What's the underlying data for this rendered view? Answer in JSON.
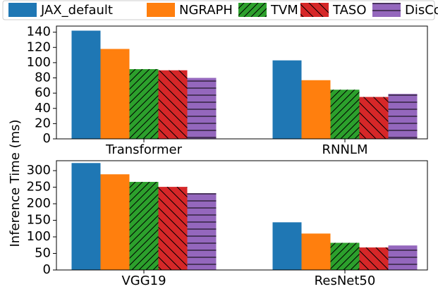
{
  "chart_data": {
    "type": "bar",
    "ylabel": "Inference Time (ms)",
    "series": [
      {
        "name": "JAX_default",
        "color": "#1f77b4",
        "hatch": null
      },
      {
        "name": "NGRAPH",
        "color": "#ff7f0e",
        "hatch": null
      },
      {
        "name": "TVM",
        "color": "#2ca02c",
        "hatch": "/"
      },
      {
        "name": "TASO",
        "color": "#d62728",
        "hatch": "\\"
      },
      {
        "name": "DisCo",
        "color": "#9467bd",
        "hatch": "-"
      }
    ],
    "panels": [
      {
        "categories": [
          "Transformer",
          "RNNLM"
        ],
        "values": [
          [
            142,
            103
          ],
          [
            118,
            77
          ],
          [
            91.5,
            64.5
          ],
          [
            90,
            55
          ],
          [
            80,
            59
          ]
        ],
        "ylim": [
          0,
          148
        ],
        "yticks": [
          0,
          20,
          40,
          60,
          80,
          100,
          120,
          140
        ]
      },
      {
        "categories": [
          "VGG19",
          "ResNet50"
        ],
        "values": [
          [
            323,
            144
          ],
          [
            289,
            110
          ],
          [
            266,
            82
          ],
          [
            251,
            68
          ],
          [
            232,
            74
          ]
        ],
        "ylim": [
          0,
          330
        ],
        "yticks": [
          0,
          50,
          100,
          150,
          200,
          250,
          300
        ]
      }
    ]
  }
}
